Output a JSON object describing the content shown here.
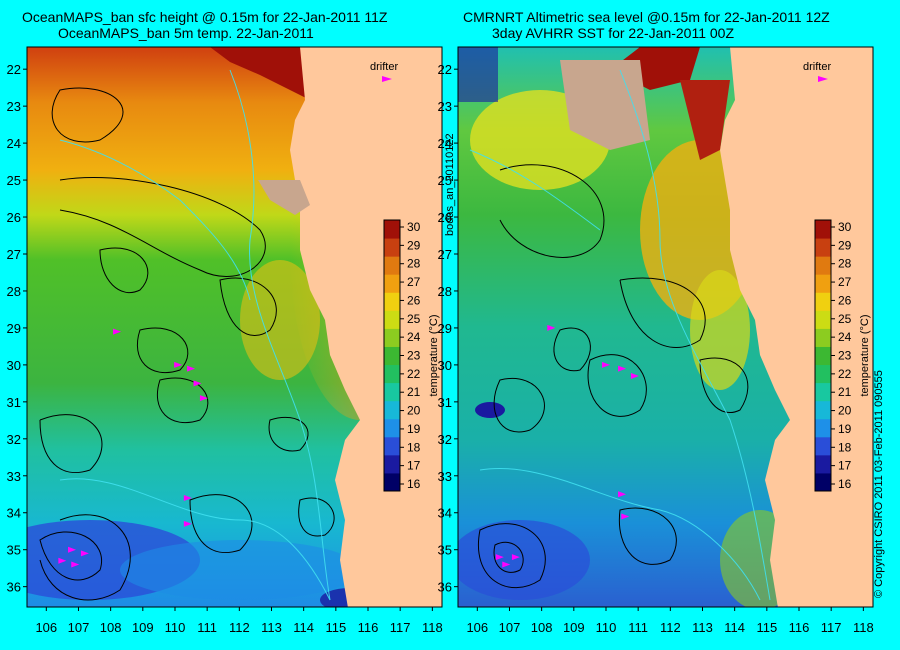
{
  "titles": {
    "left_line1": "OceanMAPS_ban sfc height @ 0.15m for 22-Jan-2011 11Z",
    "left_line2": "OceanMAPS_ban 5m temp. 22-Jan-2011",
    "right_line1": "CMRNRT Altimetric sea level  @0.15m  for 22-Jan-2011 12Z",
    "right_line2": "3day AVHRR SST for 22-Jan-2011 00Z"
  },
  "side_label": "bodas_an_20110122",
  "copyright": "© Copyright CSIRO 2011  03-Feb-2011 090555",
  "legend": {
    "drifter_label": "drifter"
  },
  "colorbar": {
    "label": "temperature (°C)",
    "ticks": [
      "16",
      "17",
      "18",
      "19",
      "20",
      "21",
      "22",
      "23",
      "24",
      "25",
      "26",
      "27",
      "28",
      "29",
      "30"
    ],
    "colors": [
      "#000066",
      "#1a1aa0",
      "#2a4ed8",
      "#1e90e8",
      "#17b8d8",
      "#18c8a0",
      "#22c060",
      "#3cb832",
      "#8ccc20",
      "#ccdc14",
      "#f0d010",
      "#f0a010",
      "#e07a10",
      "#c84010",
      "#a01008"
    ]
  },
  "axes": {
    "lat_ticks": [
      "22",
      "23",
      "24",
      "25",
      "26",
      "27",
      "28",
      "29",
      "30",
      "31",
      "32",
      "33",
      "34",
      "35",
      "36"
    ],
    "lon_ticks": [
      "106",
      "107",
      "108",
      "109",
      "110",
      "111",
      "112",
      "113",
      "114",
      "115",
      "116",
      "117",
      "118"
    ]
  },
  "drifters": {
    "left": [
      [
        108.2,
        29.1
      ],
      [
        110.1,
        30.0
      ],
      [
        110.5,
        30.1
      ],
      [
        110.7,
        30.5
      ],
      [
        110.9,
        30.9
      ],
      [
        110.4,
        33.6
      ],
      [
        110.4,
        34.3
      ],
      [
        106.5,
        35.3
      ],
      [
        106.8,
        35.0
      ],
      [
        107.2,
        35.1
      ],
      [
        106.9,
        35.4
      ]
    ],
    "right": [
      [
        108.3,
        29.0
      ],
      [
        110.0,
        30.0
      ],
      [
        110.5,
        30.1
      ],
      [
        110.9,
        30.3
      ],
      [
        110.5,
        33.5
      ],
      [
        110.6,
        34.1
      ],
      [
        106.7,
        35.2
      ],
      [
        106.9,
        35.4
      ],
      [
        107.2,
        35.2
      ]
    ]
  }
}
